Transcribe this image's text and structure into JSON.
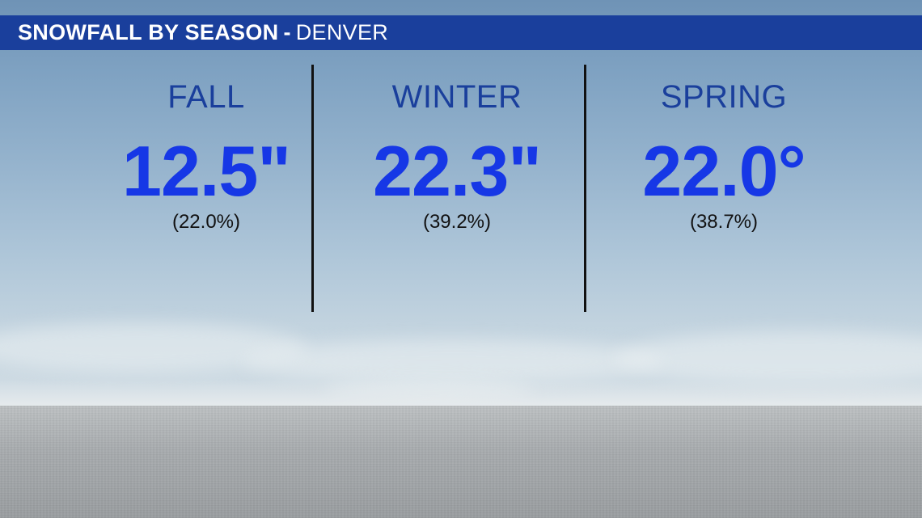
{
  "title": {
    "main": "SNOWFALL BY SEASON",
    "separator": "-",
    "location": "DENVER"
  },
  "seasons": [
    {
      "name": "FALL",
      "amount": "12.5\"",
      "percent": "(22.0%)"
    },
    {
      "name": "WINTER",
      "amount": "22.3\"",
      "percent": "(39.2%)"
    },
    {
      "name": "SPRING",
      "amount": "22.0°",
      "percent": "(38.7%)"
    }
  ],
  "colors": {
    "title_bar": "#1a3f9c",
    "season_label": "#1a3f9c",
    "amount": "#1637e6",
    "divider": "#111111"
  }
}
